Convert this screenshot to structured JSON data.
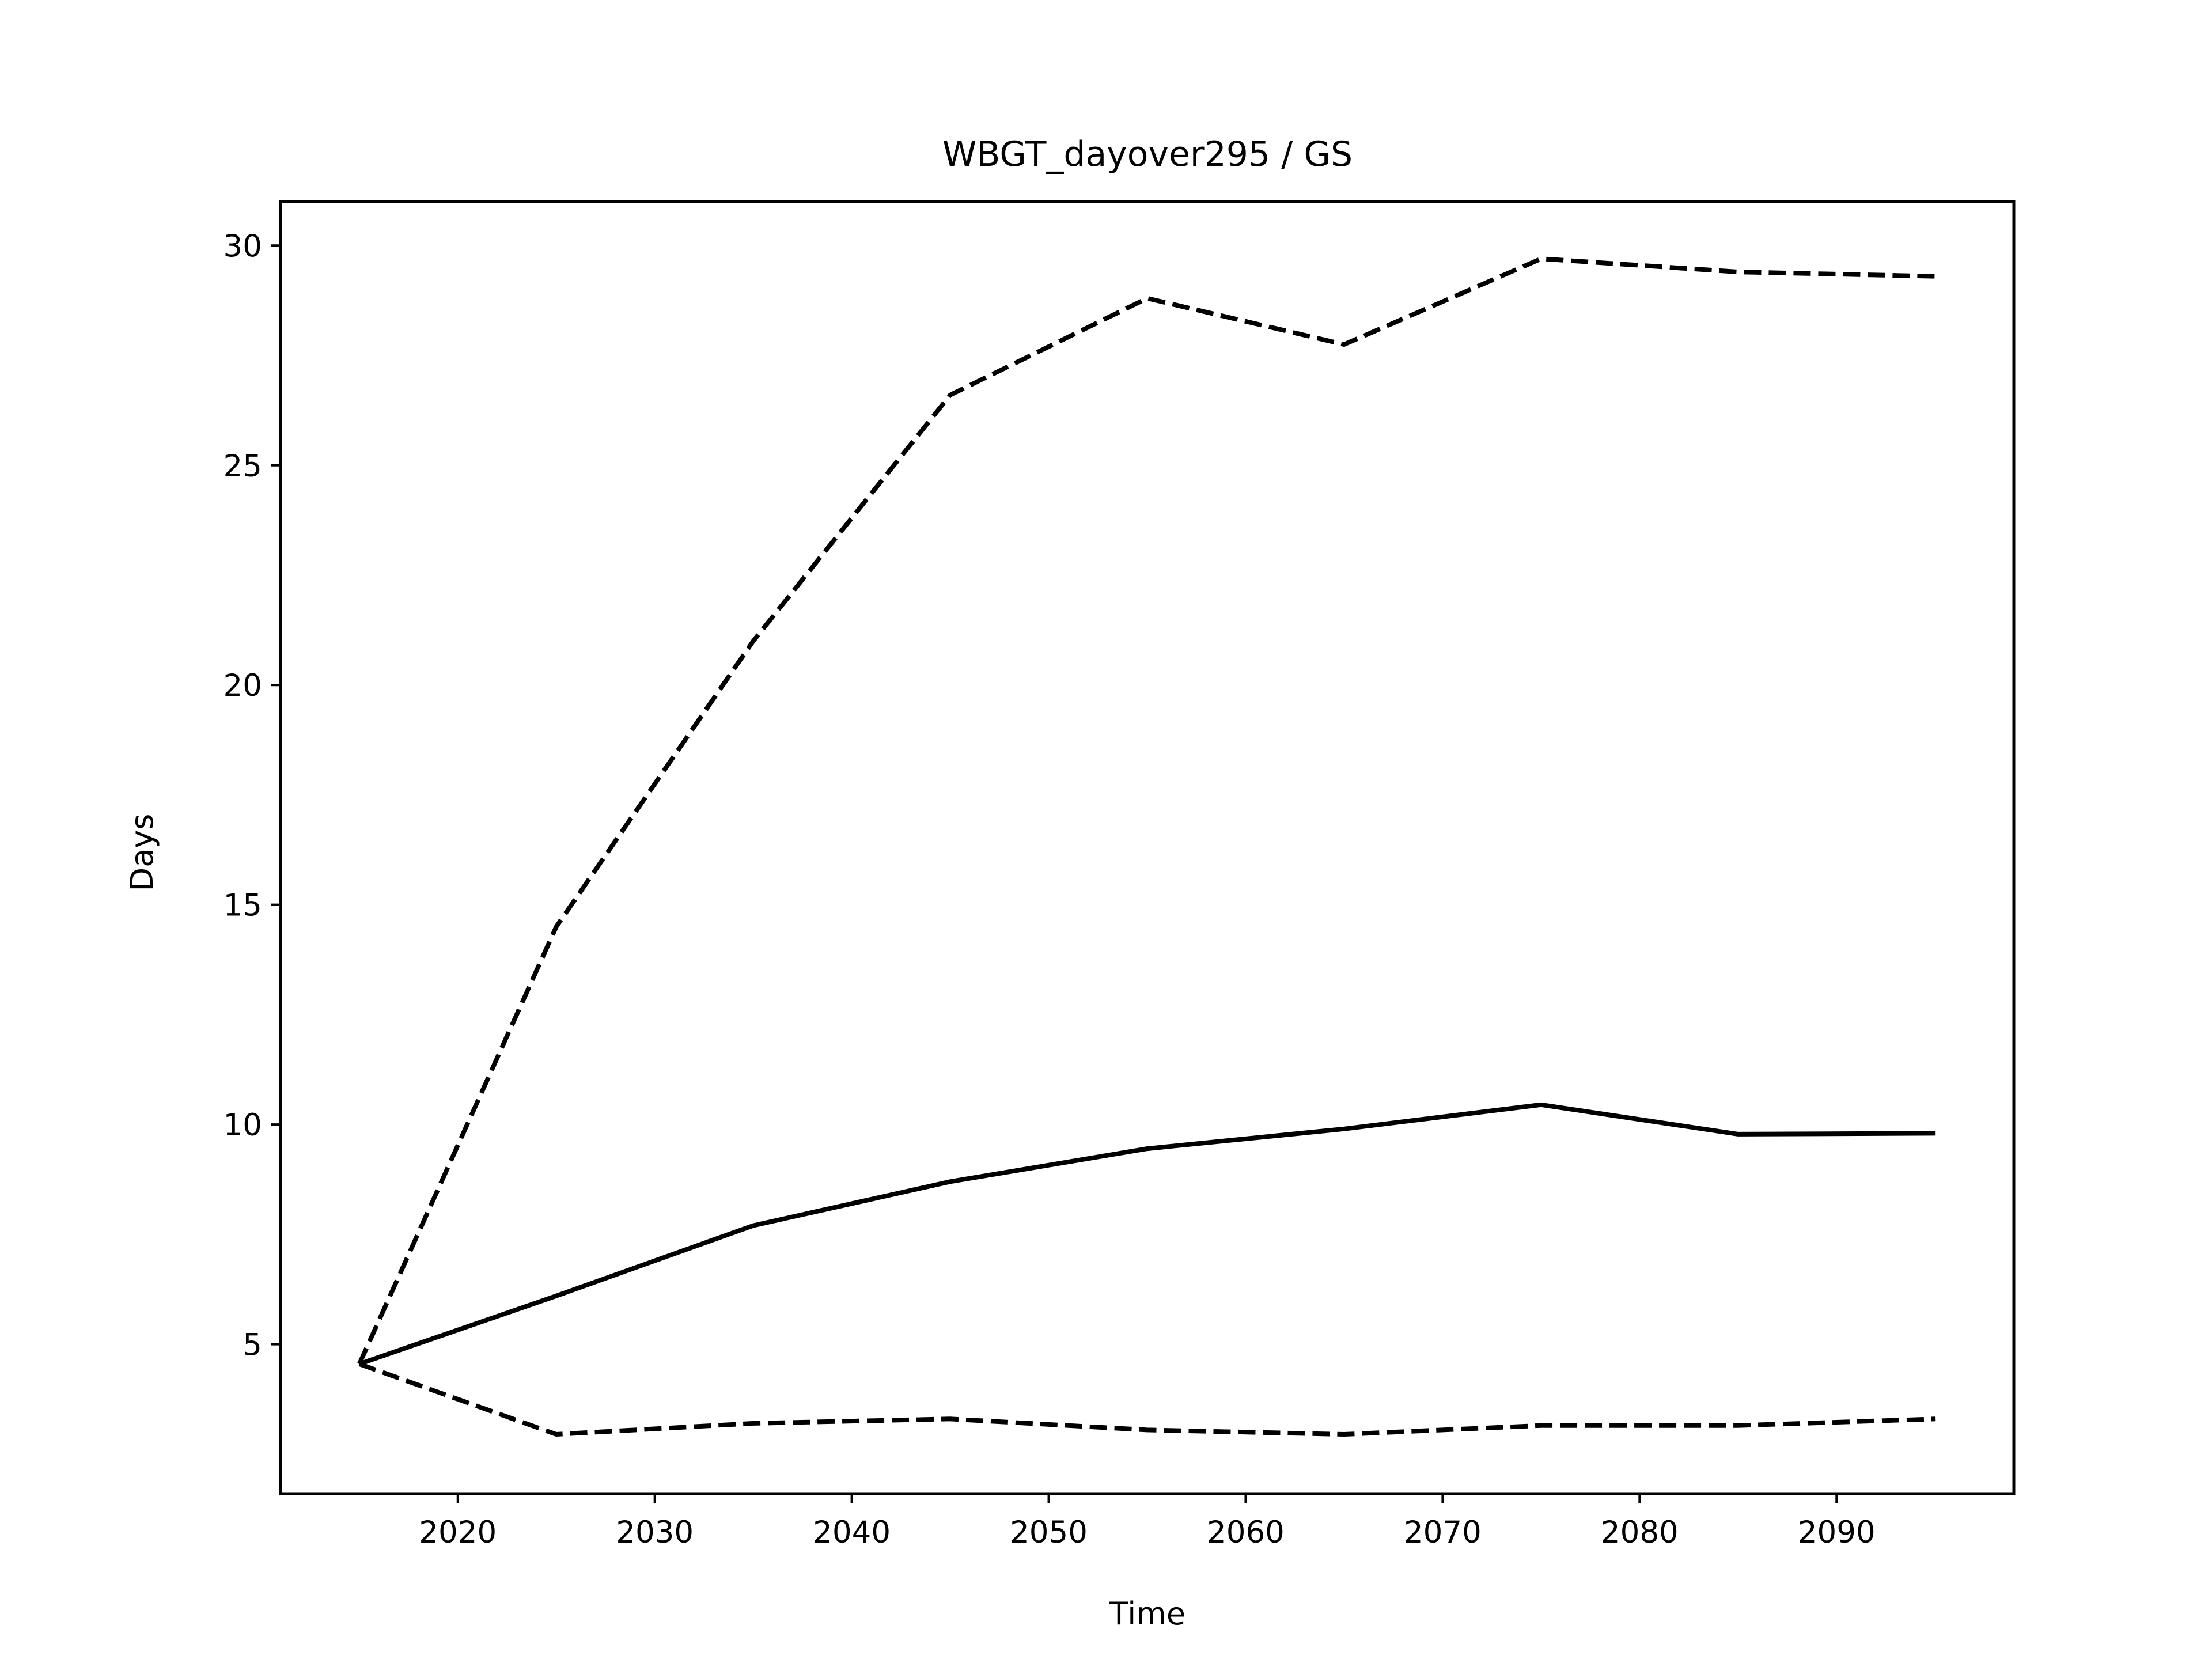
{
  "chart_data": {
    "type": "line",
    "title": "WBGT_dayover295 / GS",
    "xlabel": "Time",
    "ylabel": "Days",
    "xlim": [
      2011,
      2099
    ],
    "ylim": [
      1.6,
      31.0
    ],
    "xticks": [
      2020,
      2030,
      2040,
      2050,
      2060,
      2070,
      2080,
      2090
    ],
    "yticks": [
      5,
      10,
      15,
      20,
      25,
      30
    ],
    "x": [
      2015,
      2025,
      2035,
      2045,
      2055,
      2065,
      2075,
      2085,
      2095
    ],
    "series": [
      {
        "style": "solid",
        "color": "#000000",
        "values": [
          4.55,
          6.1,
          7.7,
          8.7,
          9.45,
          9.9,
          10.45,
          9.78,
          9.8
        ]
      },
      {
        "style": "dashed",
        "color": "#000000",
        "values": [
          4.55,
          14.5,
          21.0,
          26.6,
          28.8,
          27.75,
          29.7,
          29.4,
          29.3
        ]
      },
      {
        "style": "dashed",
        "color": "#000000",
        "values": [
          4.55,
          2.95,
          3.2,
          3.3,
          3.05,
          2.95,
          3.15,
          3.15,
          3.3
        ]
      }
    ],
    "grid": false,
    "legend": false
  }
}
